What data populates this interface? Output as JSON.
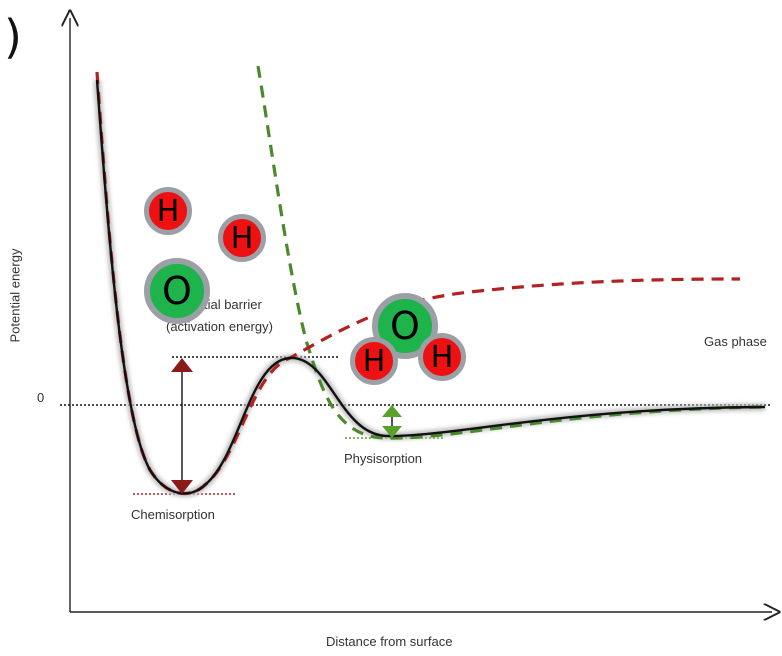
{
  "header": {
    "paren": ")",
    "cut_text": "· · · · · · · · ·"
  },
  "axes": {
    "y_label": "Potential energy",
    "x_label": "Distance from surface",
    "zero_label": "0"
  },
  "labels": {
    "barrier_line1": "Potential barrier",
    "barrier_line2": "(activation energy)",
    "gas_phase": "Gas phase",
    "physisorption": "Physisorption",
    "chemisorption": "Chemisorption"
  },
  "molecules": {
    "h": "H",
    "o": "O"
  },
  "colors": {
    "curve": "#111111",
    "red_dash": "#b22222",
    "green_dash": "#4a8a2a",
    "atom_h": "#ee1111",
    "atom_o": "#1fb34b",
    "atom_border": "#9aa0a6",
    "chem_arrow": "#8b1a1a",
    "phys_arrow": "#5aa02c"
  }
}
